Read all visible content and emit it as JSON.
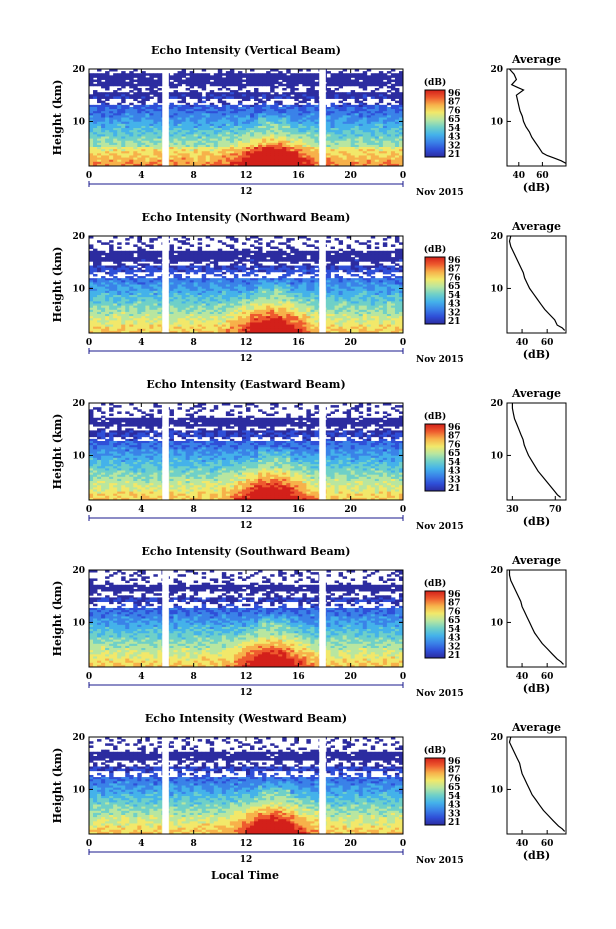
{
  "figure": {
    "xlabel_bottom": "Local Time",
    "date_label": "Nov 2015"
  },
  "colors": {
    "colormap": [
      "#2c2ca0",
      "#2f4fd8",
      "#3a82e8",
      "#44b2ea",
      "#6fd0c8",
      "#b8e6a0",
      "#f2e86a",
      "#f7b14a",
      "#ee5a2e",
      "#d3201a"
    ],
    "line": "#000000",
    "blank": "#ffffff"
  },
  "chart_data": [
    {
      "type": "heatmap",
      "title": "Echo Intensity (Vertical Beam)",
      "ylabel": "Height (km)",
      "ylim": [
        1.5,
        20
      ],
      "y_ticks": [
        "10",
        "20"
      ],
      "xlim": [
        0,
        24
      ],
      "x_ticks": [
        "0",
        "4",
        "8",
        "12",
        "16",
        "20",
        "0"
      ],
      "x_day_label": "12",
      "colorbar": {
        "label": "(dB)",
        "ticks": [
          "96",
          "87",
          "76",
          "65",
          "54",
          "43",
          "32",
          "21"
        ]
      },
      "data_gaps_hours": [
        [
          5.6,
          6.1
        ],
        [
          17.6,
          18.1
        ]
      ],
      "gap_top_km": 19,
      "blank_rows_km": [
        16.2,
        13.8
      ],
      "profile": {
        "title": "Average",
        "xlabel": "(dB)",
        "x_ticks": [
          "40",
          "60"
        ],
        "xlim": [
          30,
          80
        ],
        "ylim": [
          1.5,
          20
        ],
        "y_ticks": [
          "10",
          "20"
        ],
        "heights_km": [
          2,
          2.5,
          3,
          3.5,
          4,
          5,
          6,
          7,
          8,
          9,
          10,
          11,
          12,
          13,
          14,
          15,
          16,
          16.5,
          17,
          18,
          19,
          20
        ],
        "values_db": [
          80,
          76,
          70,
          64,
          60,
          57,
          54,
          51,
          49,
          46,
          44,
          43,
          41,
          40,
          39,
          38,
          44,
          39,
          34,
          38,
          36,
          32
        ]
      }
    },
    {
      "type": "heatmap",
      "title": "Echo Intensity (Northward Beam)",
      "ylabel": "Height (km)",
      "ylim": [
        1.5,
        20
      ],
      "y_ticks": [
        "10",
        "20"
      ],
      "xlim": [
        0,
        24
      ],
      "x_ticks": [
        "0",
        "4",
        "8",
        "12",
        "16",
        "20",
        "0"
      ],
      "x_day_label": "12",
      "colorbar": {
        "label": "(dB)",
        "ticks": [
          "96",
          "87",
          "76",
          "65",
          "54",
          "43",
          "32",
          "21"
        ]
      },
      "data_gaps_hours": [
        [
          5.6,
          6.1
        ],
        [
          17.6,
          18.1
        ]
      ],
      "gap_top_km": 17,
      "blank_rows_km": [
        14.8,
        12.6
      ],
      "profile": {
        "title": "Average",
        "xlabel": "(dB)",
        "x_ticks": [
          "40",
          "60"
        ],
        "xlim": [
          28,
          75
        ],
        "ylim": [
          1.5,
          20
        ],
        "y_ticks": [
          "10",
          "20"
        ],
        "heights_km": [
          2,
          2.5,
          3,
          4,
          5,
          6,
          7,
          8,
          9,
          10,
          11,
          12,
          13,
          14,
          15,
          16,
          17,
          18,
          19,
          20
        ],
        "values_db": [
          74,
          72,
          68,
          66,
          62,
          58,
          55,
          52,
          49,
          46,
          44,
          42,
          41,
          39,
          37,
          35,
          33,
          31,
          30,
          31
        ]
      }
    },
    {
      "type": "heatmap",
      "title": "Echo Intensity (Eastward Beam)",
      "ylabel": "Height (km)",
      "ylim": [
        1.5,
        20
      ],
      "y_ticks": [
        "10",
        "20"
      ],
      "xlim": [
        0,
        24
      ],
      "x_ticks": [
        "0",
        "4",
        "8",
        "12",
        "16",
        "20",
        "0"
      ],
      "x_day_label": "12",
      "colorbar": {
        "label": "(dB)",
        "ticks": [
          "96",
          "87",
          "76",
          "65",
          "54",
          "43",
          "33",
          "21"
        ]
      },
      "data_gaps_hours": [
        [
          5.6,
          6.1
        ],
        [
          17.6,
          18.1
        ]
      ],
      "gap_top_km": 17,
      "blank_rows_km": [
        15.2,
        13.2
      ],
      "profile": {
        "title": "Average",
        "xlabel": "(dB)",
        "x_ticks": [
          "30",
          "70"
        ],
        "xlim": [
          25,
          80
        ],
        "ylim": [
          1.5,
          20
        ],
        "y_ticks": [
          "10",
          "20"
        ],
        "heights_km": [
          2,
          2.5,
          3,
          4,
          5,
          6,
          7,
          8,
          9,
          10,
          11,
          12,
          13,
          14,
          15,
          16,
          17,
          18,
          19,
          20
        ],
        "values_db": [
          75,
          72,
          70,
          66,
          62,
          58,
          54,
          51,
          48,
          45,
          43,
          41,
          40,
          38,
          36,
          34,
          32,
          31,
          30,
          30
        ]
      }
    },
    {
      "type": "heatmap",
      "title": "Echo Intensity (Southward Beam)",
      "ylabel": "Height (km)",
      "ylim": [
        1.5,
        20
      ],
      "y_ticks": [
        "10",
        "20"
      ],
      "xlim": [
        0,
        24
      ],
      "x_ticks": [
        "0",
        "4",
        "8",
        "12",
        "16",
        "20",
        "0"
      ],
      "x_day_label": "12",
      "colorbar": {
        "label": "(dB)",
        "ticks": [
          "96",
          "87",
          "76",
          "65",
          "54",
          "43",
          "32",
          "21"
        ]
      },
      "data_gaps_hours": [
        [
          5.6,
          6.1
        ],
        [
          17.6,
          18.1
        ]
      ],
      "gap_top_km": 17,
      "blank_rows_km": [
        15.4,
        13.4
      ],
      "profile": {
        "title": "Average",
        "xlabel": "(dB)",
        "x_ticks": [
          "40",
          "60"
        ],
        "xlim": [
          28,
          75
        ],
        "ylim": [
          1.5,
          20
        ],
        "y_ticks": [
          "10",
          "20"
        ],
        "heights_km": [
          2,
          2.5,
          3,
          4,
          5,
          6,
          7,
          8,
          9,
          10,
          11,
          12,
          13,
          14,
          15,
          16,
          17,
          18,
          19,
          20
        ],
        "values_db": [
          73,
          71,
          68,
          64,
          60,
          56,
          53,
          50,
          48,
          46,
          44,
          42,
          40,
          39,
          37,
          35,
          33,
          31,
          30,
          30
        ]
      }
    },
    {
      "type": "heatmap",
      "title": "Echo Intensity (Westward Beam)",
      "ylabel": "Height (km)",
      "ylim": [
        1.5,
        20
      ],
      "y_ticks": [
        "10",
        "20"
      ],
      "xlim": [
        0,
        24
      ],
      "x_ticks": [
        "0",
        "4",
        "8",
        "12",
        "16",
        "20",
        "0"
      ],
      "x_day_label": "12",
      "colorbar": {
        "label": "(dB)",
        "ticks": [
          "96",
          "87",
          "76",
          "65",
          "54",
          "43",
          "33",
          "21"
        ]
      },
      "data_gaps_hours": [
        [
          5.6,
          6.1
        ],
        [
          17.6,
          18.1
        ]
      ],
      "gap_top_km": 17,
      "blank_rows_km": [
        15.0,
        13.0
      ],
      "profile": {
        "title": "Average",
        "xlabel": "(dB)",
        "x_ticks": [
          "40",
          "60"
        ],
        "xlim": [
          28,
          75
        ],
        "ylim": [
          1.5,
          20
        ],
        "y_ticks": [
          "10",
          "20"
        ],
        "heights_km": [
          2,
          2.5,
          3,
          4,
          5,
          6,
          7,
          8,
          9,
          10,
          11,
          12,
          13,
          14,
          15,
          16,
          17,
          18,
          19,
          20
        ],
        "values_db": [
          74,
          72,
          69,
          65,
          61,
          57,
          54,
          51,
          48,
          46,
          44,
          42,
          40,
          39,
          38,
          36,
          34,
          32,
          30,
          31
        ]
      }
    }
  ]
}
